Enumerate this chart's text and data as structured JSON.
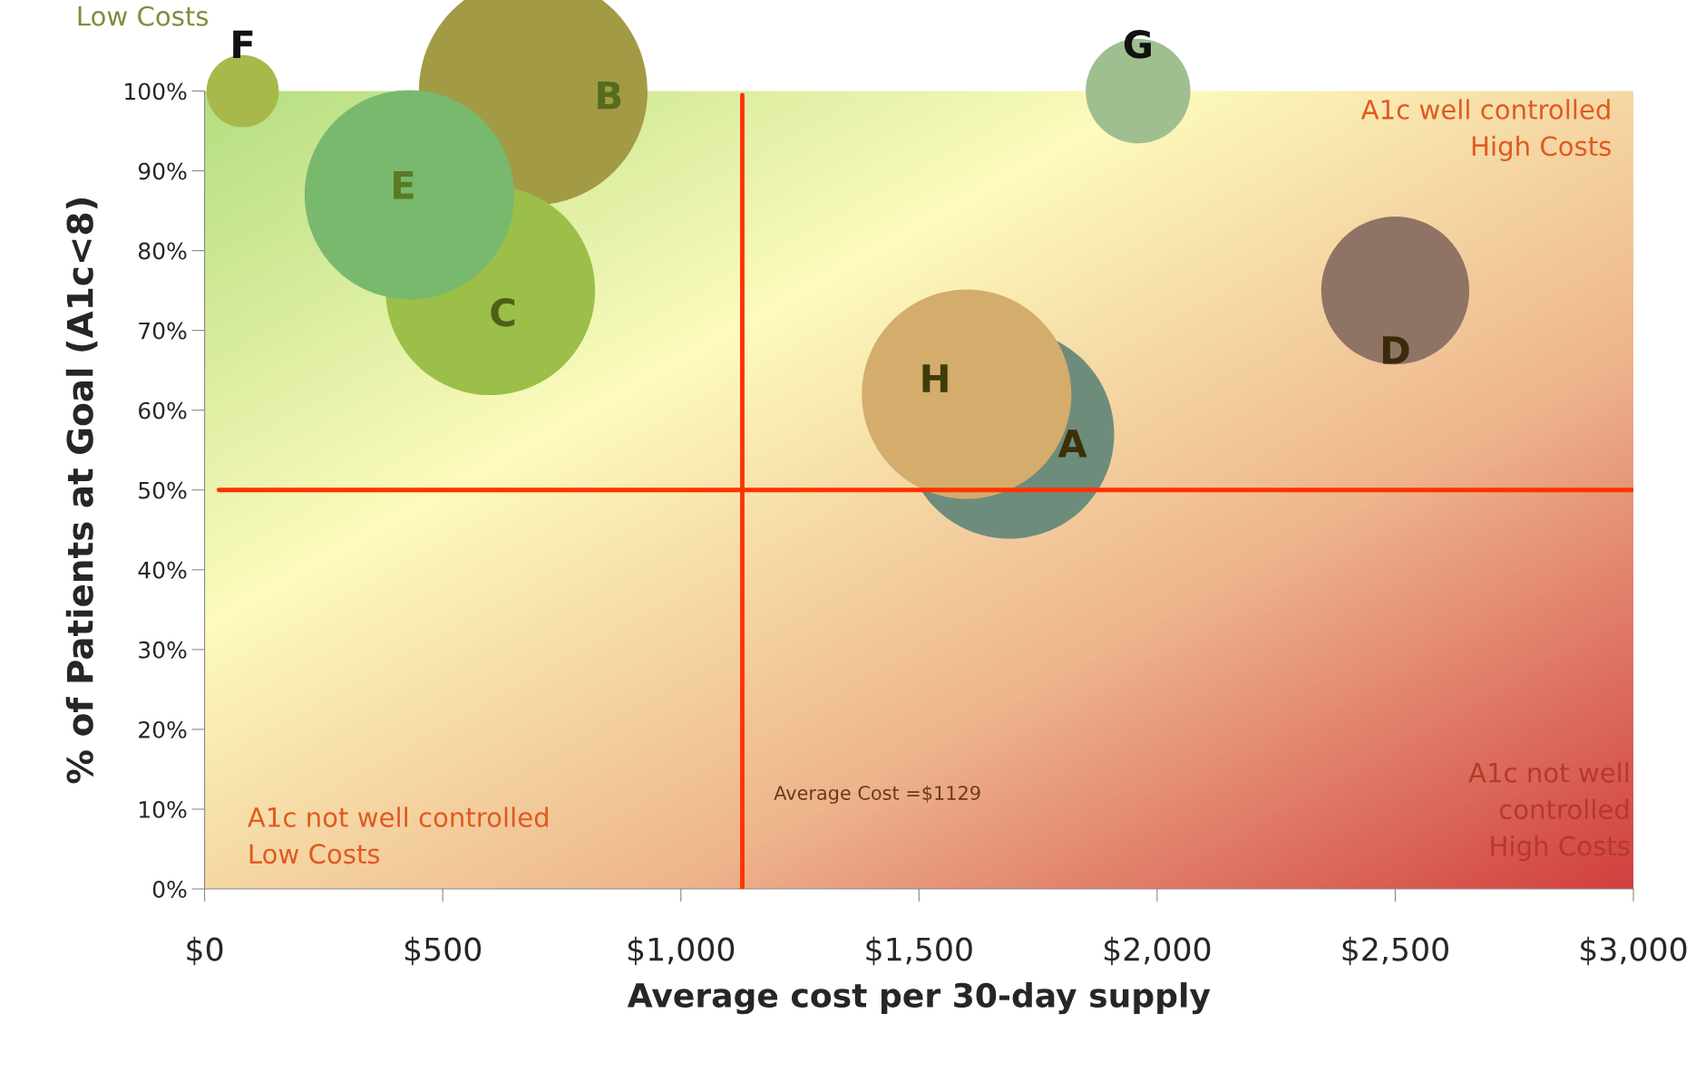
{
  "chart_data": {
    "type": "bubble",
    "xlabel": "Average cost per 30-day supply",
    "ylabel": "% of Patients at Goal (A1c<8)",
    "xlim": [
      0,
      3000
    ],
    "ylim": [
      0,
      100
    ],
    "xticks": [
      {
        "value": 0,
        "label": "$0"
      },
      {
        "value": 500,
        "label": "$500"
      },
      {
        "value": 1000,
        "label": "$1,000"
      },
      {
        "value": 1500,
        "label": "$1,500"
      },
      {
        "value": 2000,
        "label": "$2,000"
      },
      {
        "value": 2500,
        "label": "$2,500"
      },
      {
        "value": 3000,
        "label": "$3,000"
      }
    ],
    "yticks": [
      {
        "value": 0,
        "label": "0%"
      },
      {
        "value": 10,
        "label": "10%"
      },
      {
        "value": 20,
        "label": "20%"
      },
      {
        "value": 30,
        "label": "30%"
      },
      {
        "value": 40,
        "label": "40%"
      },
      {
        "value": 50,
        "label": "50%"
      },
      {
        "value": 60,
        "label": "60%"
      },
      {
        "value": 70,
        "label": "70%"
      },
      {
        "value": 80,
        "label": "80%"
      },
      {
        "value": 90,
        "label": "90%"
      },
      {
        "value": 100,
        "label": "100%"
      }
    ],
    "series": [
      {
        "name": "F",
        "color": "#a7b94a",
        "x": [
          80
        ],
        "values": [
          100
        ],
        "sizes": [
          0.1
        ]
      },
      {
        "name": "B",
        "color": "#a39a45",
        "x": [
          690
        ],
        "values": [
          100
        ],
        "sizes": [
          1
        ]
      },
      {
        "name": "C",
        "color": "#9bbf48",
        "x": [
          600
        ],
        "values": [
          75
        ],
        "sizes": [
          0.84
        ]
      },
      {
        "name": "E",
        "color": "#78b96e",
        "x": [
          430
        ],
        "values": [
          87
        ],
        "sizes": [
          0.84
        ]
      },
      {
        "name": "G",
        "color": "#a0bf90",
        "x": [
          1960
        ],
        "values": [
          100
        ],
        "sizes": [
          0.21
        ]
      },
      {
        "name": "A",
        "color": "#6e8c7c",
        "x": [
          1690
        ],
        "values": [
          57
        ],
        "sizes": [
          0.84
        ]
      },
      {
        "name": "H",
        "color": "#d4ac6c",
        "x": [
          1600
        ],
        "values": [
          62
        ],
        "sizes": [
          0.84
        ]
      },
      {
        "name": "D",
        "color": "#8f7466",
        "x": [
          2500
        ],
        "values": [
          75
        ],
        "sizes": [
          0.42
        ]
      }
    ],
    "ref_lines": [
      {
        "axis": "y",
        "value": 50,
        "color": "#ff3300"
      },
      {
        "axis": "x",
        "value": 1129,
        "label": "Average Cost =$1129",
        "color": "#ff3300"
      }
    ],
    "annotations": [
      "Low Costs",
      "A1c well controlled\nHigh Costs",
      "A1c not well controlled\nLow Costs",
      "A1c not well\ncontrolled\nHigh Costs"
    ],
    "grid": false,
    "legend": false
  }
}
